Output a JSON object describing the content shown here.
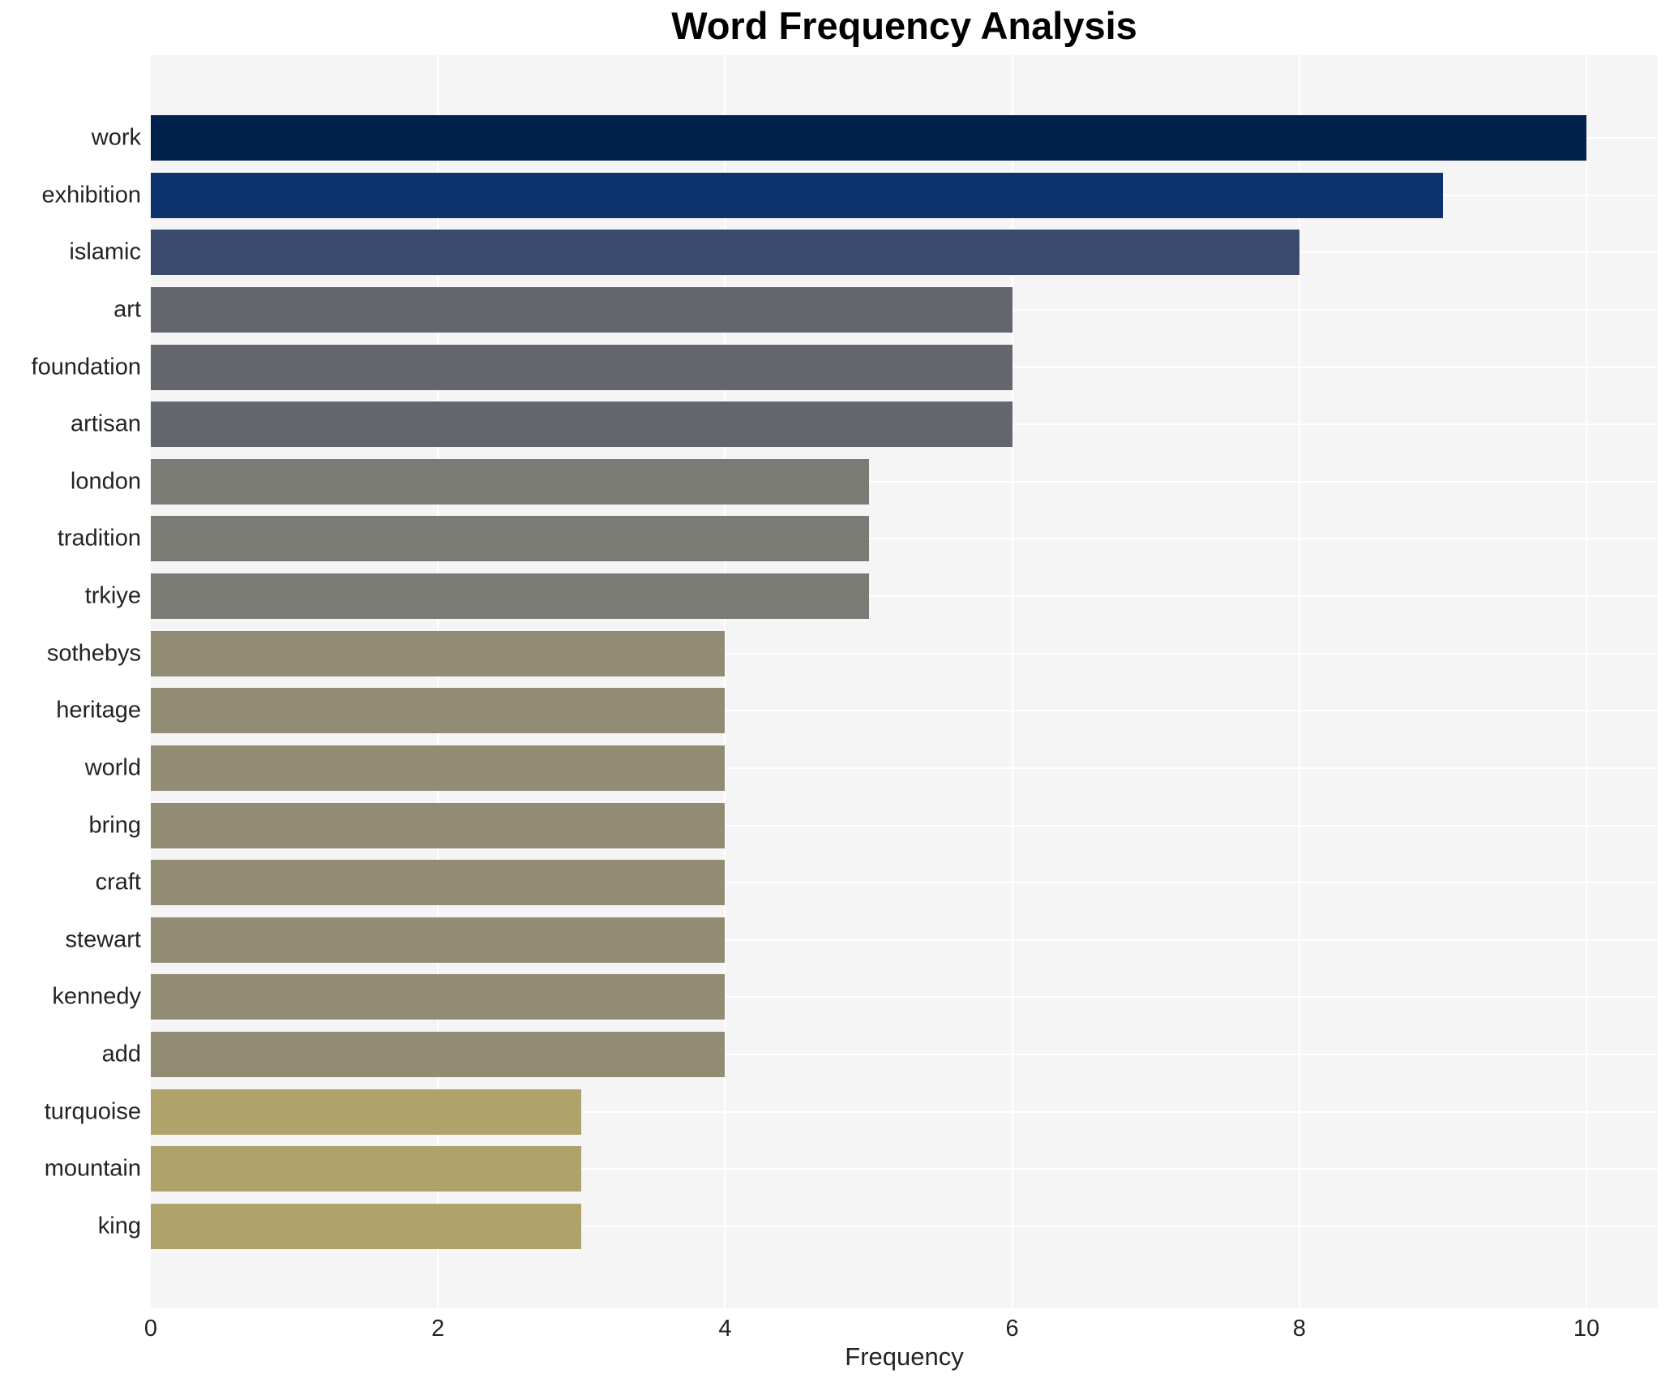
{
  "chart_data": {
    "type": "bar",
    "orientation": "horizontal",
    "title": "Word Frequency Analysis",
    "xlabel": "Frequency",
    "ylabel": "",
    "categories": [
      "work",
      "exhibition",
      "islamic",
      "art",
      "foundation",
      "artisan",
      "london",
      "tradition",
      "trkiye",
      "sothebys",
      "heritage",
      "world",
      "bring",
      "craft",
      "stewart",
      "kennedy",
      "add",
      "turquoise",
      "mountain",
      "king"
    ],
    "values": [
      10,
      9,
      8,
      6,
      6,
      6,
      5,
      5,
      5,
      4,
      4,
      4,
      4,
      4,
      4,
      4,
      4,
      3,
      3,
      3
    ],
    "bar_colors": [
      "#02224e",
      "#0d336e",
      "#3a4a6c",
      "#64666d",
      "#64666d",
      "#64666d",
      "#7a7b75",
      "#7a7b75",
      "#7a7b75",
      "#938c75",
      "#938c75",
      "#938c75",
      "#938c75",
      "#938c75",
      "#938c75",
      "#938c75",
      "#938c75",
      "#afa26b",
      "#afa26b",
      "#afa26b"
    ],
    "xticks": [
      0,
      2,
      4,
      6,
      8,
      10
    ],
    "xlim": [
      0,
      10.5
    ],
    "grid": true,
    "legend": false,
    "plot_bg_color": "#f5f5f6",
    "grid_color": "#ffffff",
    "text_color": "#232323",
    "title_color": "#000000"
  }
}
